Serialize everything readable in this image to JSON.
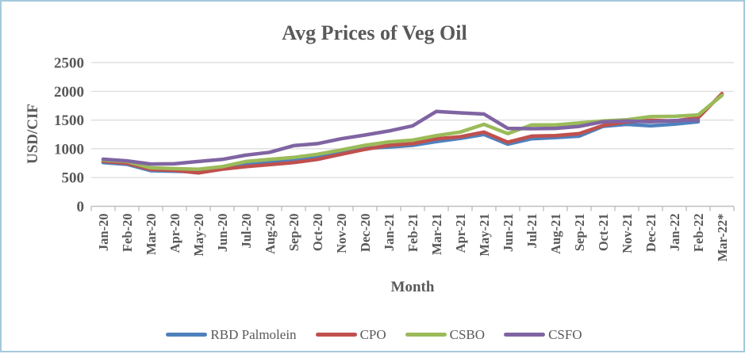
{
  "frame": {
    "border_color": "#a5c9db",
    "background": "#ffffff"
  },
  "chart_data": {
    "type": "line",
    "title": "Avg Prices of Veg Oil",
    "xlabel": "Month",
    "ylabel": "USD/CIF",
    "ylim": [
      0,
      2500
    ],
    "yticks": [
      0,
      500,
      1000,
      1500,
      2000,
      2500
    ],
    "grid": true,
    "legend_position": "bottom",
    "text_color": "#595959",
    "gridline_color": "#d9d9d9",
    "axis_color": "#bfbfbf",
    "categories": [
      "Jan-20",
      "Feb-20",
      "Mar-20",
      "Apr-20",
      "May-20",
      "Jun-20",
      "Jul-20",
      "Aug-20",
      "Sep-20",
      "Oct-20",
      "Nov-20",
      "Dec-20",
      "Jan-21",
      "Feb-21",
      "Mar-21",
      "Apr-21",
      "May-21",
      "Jun-21",
      "Jul-21",
      "Aug-21",
      "Sep-21",
      "Oct-21",
      "Nov-21",
      "Dec-21",
      "Jan-22",
      "Feb-22",
      "Mar-22*"
    ],
    "series": [
      {
        "name": "RBD Palmolein",
        "color": "#4f81bd",
        "values": [
          760,
          730,
          620,
          610,
          600,
          665,
          720,
          770,
          805,
          850,
          935,
          1010,
          1030,
          1060,
          1125,
          1180,
          1250,
          1080,
          1175,
          1195,
          1220,
          1390,
          1425,
          1400,
          1430,
          1470,
          null
        ]
      },
      {
        "name": "CPO",
        "color": "#c0504d",
        "values": [
          785,
          750,
          640,
          625,
          580,
          645,
          690,
          725,
          760,
          815,
          905,
          990,
          1060,
          1090,
          1175,
          1210,
          1290,
          1115,
          1220,
          1230,
          1265,
          1405,
          1470,
          1495,
          1485,
          1540,
          1960
        ]
      },
      {
        "name": "CSBO",
        "color": "#9bbb59",
        "values": [
          805,
          780,
          670,
          655,
          645,
          690,
          780,
          815,
          850,
          905,
          980,
          1060,
          1120,
          1150,
          1230,
          1290,
          1425,
          1265,
          1415,
          1415,
          1450,
          1485,
          1505,
          1560,
          1565,
          1590,
          1930
        ]
      },
      {
        "name": "CSFO",
        "color": "#8064a2",
        "values": [
          820,
          790,
          735,
          740,
          780,
          815,
          890,
          940,
          1055,
          1090,
          1175,
          1240,
          1310,
          1400,
          1650,
          1625,
          1605,
          1355,
          1350,
          1355,
          1390,
          1470,
          1485,
          1470,
          1490,
          1500,
          null
        ]
      }
    ]
  }
}
